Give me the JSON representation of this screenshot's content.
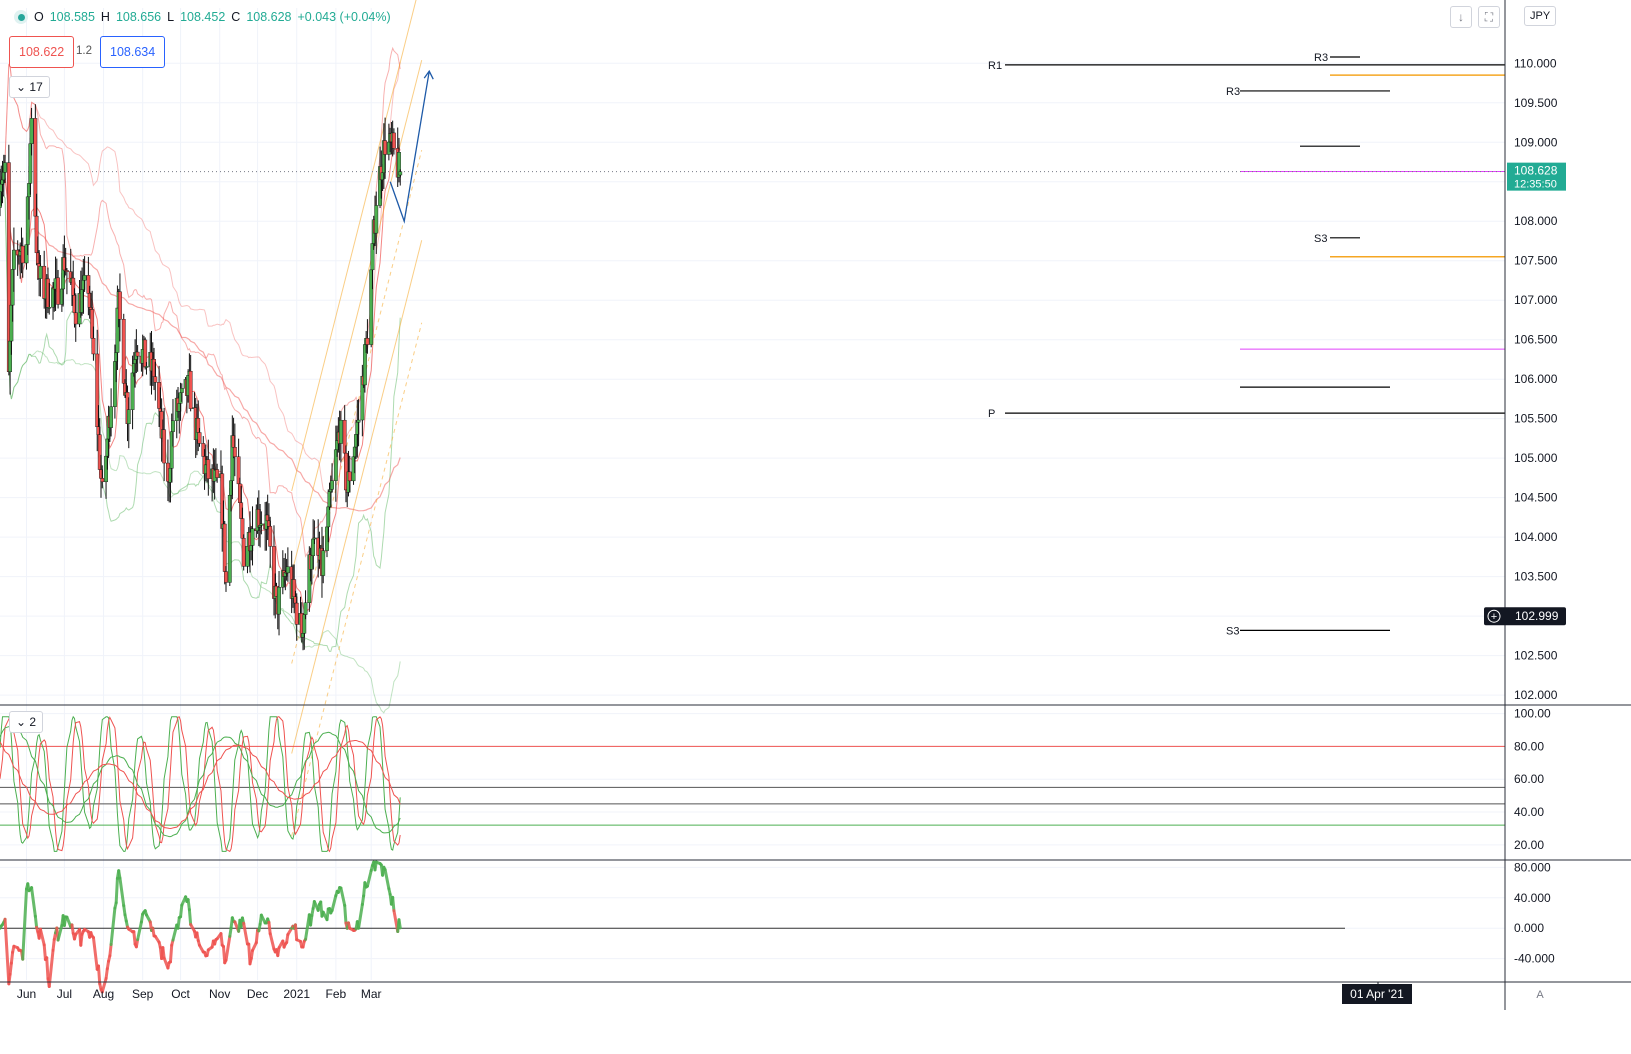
{
  "header": {
    "o_label": "O",
    "o_value": "108.585",
    "h_label": "H",
    "h_value": "108.656",
    "l_label": "L",
    "l_value": "108.452",
    "c_label": "C",
    "c_value": "108.628",
    "change": "+0.043 (+0.04%)",
    "sell_price": "108.622",
    "spread": "1.2",
    "buy_price": "108.634"
  },
  "toolbar": {
    "main_collapse": "17",
    "osc_collapse": "2",
    "currency": "JPY",
    "auto_scale": "A"
  },
  "colors": {
    "up": "#4caf50",
    "down": "#ef5350",
    "price_badge": "#22ab94",
    "pivot_line": "#000000",
    "fib_line": "#f5a623",
    "magenta_line": "#e040fb",
    "projection_arrow": "#1e5aa8"
  },
  "chart_data": [
    {
      "type": "candlestick",
      "symbol_currency": "JPY",
      "x_ticks": [
        "Jun",
        "Jul",
        "Aug",
        "Sep",
        "Oct",
        "Nov",
        "Dec",
        "2021",
        "Feb",
        "Mar"
      ],
      "x_highlight": "01 Apr '21",
      "y_ticks": [
        "102.000",
        "102.500",
        "103.000",
        "103.500",
        "104.000",
        "104.500",
        "105.000",
        "105.500",
        "106.000",
        "106.500",
        "107.000",
        "107.500",
        "108.000",
        "108.500",
        "109.000",
        "109.500",
        "110.000"
      ],
      "ylim": [
        101.9,
        110.7
      ],
      "current_price": "108.628",
      "countdown": "12:35:50",
      "crosshair_price": "102.999",
      "levels": [
        {
          "label": "R1",
          "value": 109.98
        },
        {
          "label": "R3",
          "value": 109.65
        },
        {
          "label": "R3",
          "value": 110.08
        },
        {
          "label": "P",
          "value": 105.57
        },
        {
          "label": "S3",
          "value": 107.79
        },
        {
          "label": "S3",
          "value": 102.82
        }
      ],
      "pivot_waypoints": [
        {
          "date": "2020-05-18",
          "close": 106.0
        },
        {
          "date": "2020-05-22",
          "close": 107.6
        },
        {
          "date": "2020-06-01",
          "close": 107.7
        },
        {
          "date": "2020-06-05",
          "close": 109.4
        },
        {
          "date": "2020-06-10",
          "close": 107.3
        },
        {
          "date": "2020-06-16",
          "close": 107.1
        },
        {
          "date": "2020-06-25",
          "close": 107.1
        },
        {
          "date": "2020-07-01",
          "close": 107.5
        },
        {
          "date": "2020-07-10",
          "close": 106.9
        },
        {
          "date": "2020-07-20",
          "close": 107.2
        },
        {
          "date": "2020-07-31",
          "close": 104.5
        },
        {
          "date": "2020-08-06",
          "close": 105.6
        },
        {
          "date": "2020-08-13",
          "close": 106.9
        },
        {
          "date": "2020-08-20",
          "close": 105.6
        },
        {
          "date": "2020-08-27",
          "close": 106.5
        },
        {
          "date": "2020-09-04",
          "close": 106.2
        },
        {
          "date": "2020-09-10",
          "close": 106.1
        },
        {
          "date": "2020-09-21",
          "close": 104.6
        },
        {
          "date": "2020-09-25",
          "close": 105.5
        },
        {
          "date": "2020-10-08",
          "close": 105.9
        },
        {
          "date": "2020-10-15",
          "close": 105.2
        },
        {
          "date": "2020-10-22",
          "close": 104.8
        },
        {
          "date": "2020-11-02",
          "close": 104.6
        },
        {
          "date": "2020-11-06",
          "close": 103.4
        },
        {
          "date": "2020-11-11",
          "close": 105.3
        },
        {
          "date": "2020-11-20",
          "close": 103.8
        },
        {
          "date": "2020-11-30",
          "close": 104.3
        },
        {
          "date": "2020-12-08",
          "close": 104.2
        },
        {
          "date": "2020-12-16",
          "close": 103.1
        },
        {
          "date": "2020-12-24",
          "close": 103.6
        },
        {
          "date": "2021-01-05",
          "close": 102.8
        },
        {
          "date": "2021-01-13",
          "close": 103.9
        },
        {
          "date": "2021-01-21",
          "close": 103.6
        },
        {
          "date": "2021-02-04",
          "close": 105.4
        },
        {
          "date": "2021-02-10",
          "close": 104.6
        },
        {
          "date": "2021-02-19",
          "close": 105.5
        },
        {
          "date": "2021-02-26",
          "close": 106.6
        },
        {
          "date": "2021-03-05",
          "close": 108.3
        },
        {
          "date": "2021-03-12",
          "close": 109.0
        },
        {
          "date": "2021-03-18",
          "close": 108.9
        },
        {
          "date": "2021-03-24",
          "close": 108.6
        }
      ]
    },
    {
      "type": "line",
      "panel": "stochastic",
      "y_ticks": [
        "20.00",
        "40.00",
        "60.00",
        "80.00",
        "100.00"
      ],
      "ylim": [
        12,
        104
      ],
      "reference_lines": [
        80,
        55,
        45,
        32
      ]
    },
    {
      "type": "line",
      "panel": "momentum",
      "y_ticks": [
        "-40.000",
        "0.000",
        "40.000",
        "80.000"
      ],
      "ylim": [
        -68,
        87
      ],
      "zero_line": 0
    }
  ]
}
